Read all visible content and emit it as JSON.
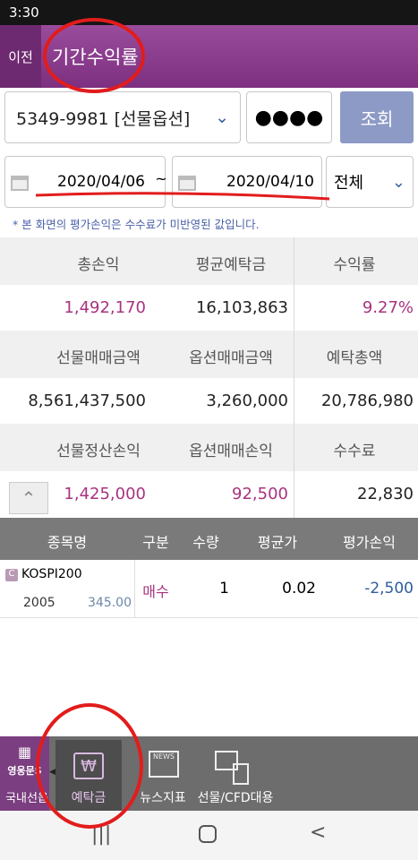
{
  "status_bar": {
    "time": "3:30"
  },
  "header": {
    "back": "이전",
    "title": "기간수익률"
  },
  "query": {
    "account": "5349-9981 [선물옵션]",
    "password": "●●●●",
    "button": "조회"
  },
  "dates": {
    "start": "2020/04/06",
    "separator": "~",
    "end": "2020/04/10",
    "filter": "전체"
  },
  "note": "* 본 화면의 평가손익은 수수료가 미반영된 값입니다.",
  "summary": {
    "rows": [
      {
        "labels": [
          "총손익",
          "평균예탁금",
          "수익률"
        ],
        "values": [
          "1,492,170",
          "16,103,863",
          "9.27%"
        ]
      },
      {
        "labels": [
          "선물매매금액",
          "옵션매매금액",
          "예탁총액"
        ],
        "values": [
          "8,561,437,500",
          "3,260,000",
          "20,786,980"
        ]
      },
      {
        "labels": [
          "선물정산손익",
          "옵션매매손익",
          "수수료"
        ],
        "values": [
          "1,425,000",
          "92,500",
          "22,830"
        ]
      }
    ]
  },
  "table": {
    "columns": [
      "종목명",
      "구분",
      "수량",
      "평균가",
      "평가손익"
    ],
    "rows": [
      {
        "badge": "C",
        "name": "KOSPI200",
        "code": "2005",
        "strike": "345.00",
        "side": "매수",
        "qty": "1",
        "avg": "0.02",
        "pnl": "-2,500"
      }
    ]
  },
  "nav": {
    "logo": "영웅문S",
    "items": [
      "국내선옵",
      "예탁금",
      "뉴스지표",
      "선물/CFD대용"
    ],
    "news_icon": "NEWS"
  }
}
